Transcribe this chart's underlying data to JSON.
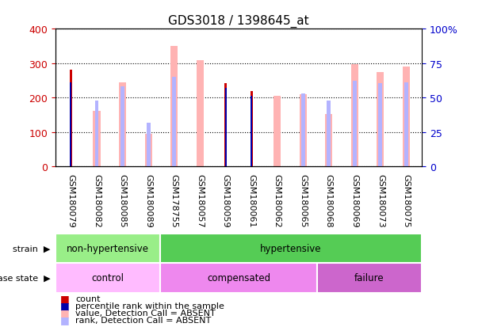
{
  "title": "GDS3018 / 1398645_at",
  "samples": [
    "GSM180079",
    "GSM180082",
    "GSM180085",
    "GSM180089",
    "GSM178755",
    "GSM180057",
    "GSM180059",
    "GSM180061",
    "GSM180062",
    "GSM180065",
    "GSM180068",
    "GSM180069",
    "GSM180073",
    "GSM180075"
  ],
  "count": [
    280,
    0,
    0,
    0,
    0,
    0,
    243,
    218,
    0,
    0,
    0,
    0,
    0,
    0
  ],
  "percentile": [
    245,
    0,
    0,
    0,
    0,
    0,
    228,
    206,
    0,
    0,
    0,
    0,
    0,
    0
  ],
  "value_absent": [
    0,
    162,
    245,
    95,
    350,
    308,
    0,
    0,
    204,
    210,
    152,
    298,
    275,
    290
  ],
  "rank_absent": [
    0,
    192,
    232,
    126,
    260,
    0,
    0,
    0,
    0,
    212,
    192,
    248,
    242,
    245
  ],
  "ylim_left": [
    0,
    400
  ],
  "ylim_right": [
    0,
    100
  ],
  "yticks_left": [
    0,
    100,
    200,
    300,
    400
  ],
  "yticks_right": [
    0,
    25,
    50,
    75,
    100
  ],
  "yticklabels_right": [
    "0",
    "25",
    "50",
    "75",
    "100%"
  ],
  "color_count": "#cc0000",
  "color_percentile": "#0000aa",
  "color_value_absent": "#ffb3b3",
  "color_rank_absent": "#b3b3ff",
  "strain_groups": [
    {
      "label": "non-hypertensive",
      "start": 0,
      "end": 4,
      "color": "#99ee88"
    },
    {
      "label": "hypertensive",
      "start": 4,
      "end": 14,
      "color": "#55cc55"
    }
  ],
  "disease_groups": [
    {
      "label": "control",
      "start": 0,
      "end": 4,
      "color": "#ffbbff"
    },
    {
      "label": "compensated",
      "start": 4,
      "end": 10,
      "color": "#ee88ee"
    },
    {
      "label": "failure",
      "start": 10,
      "end": 14,
      "color": "#cc66cc"
    }
  ],
  "legend_items": [
    {
      "label": "count",
      "color": "#cc0000"
    },
    {
      "label": "percentile rank within the sample",
      "color": "#0000aa"
    },
    {
      "label": "value, Detection Call = ABSENT",
      "color": "#ffb3b3"
    },
    {
      "label": "rank, Detection Call = ABSENT",
      "color": "#b3b3ff"
    }
  ],
  "background_color": "#ffffff",
  "axis_color_left": "#cc0000",
  "axis_color_right": "#0000cc",
  "tick_label_size": 8,
  "title_fontsize": 11
}
